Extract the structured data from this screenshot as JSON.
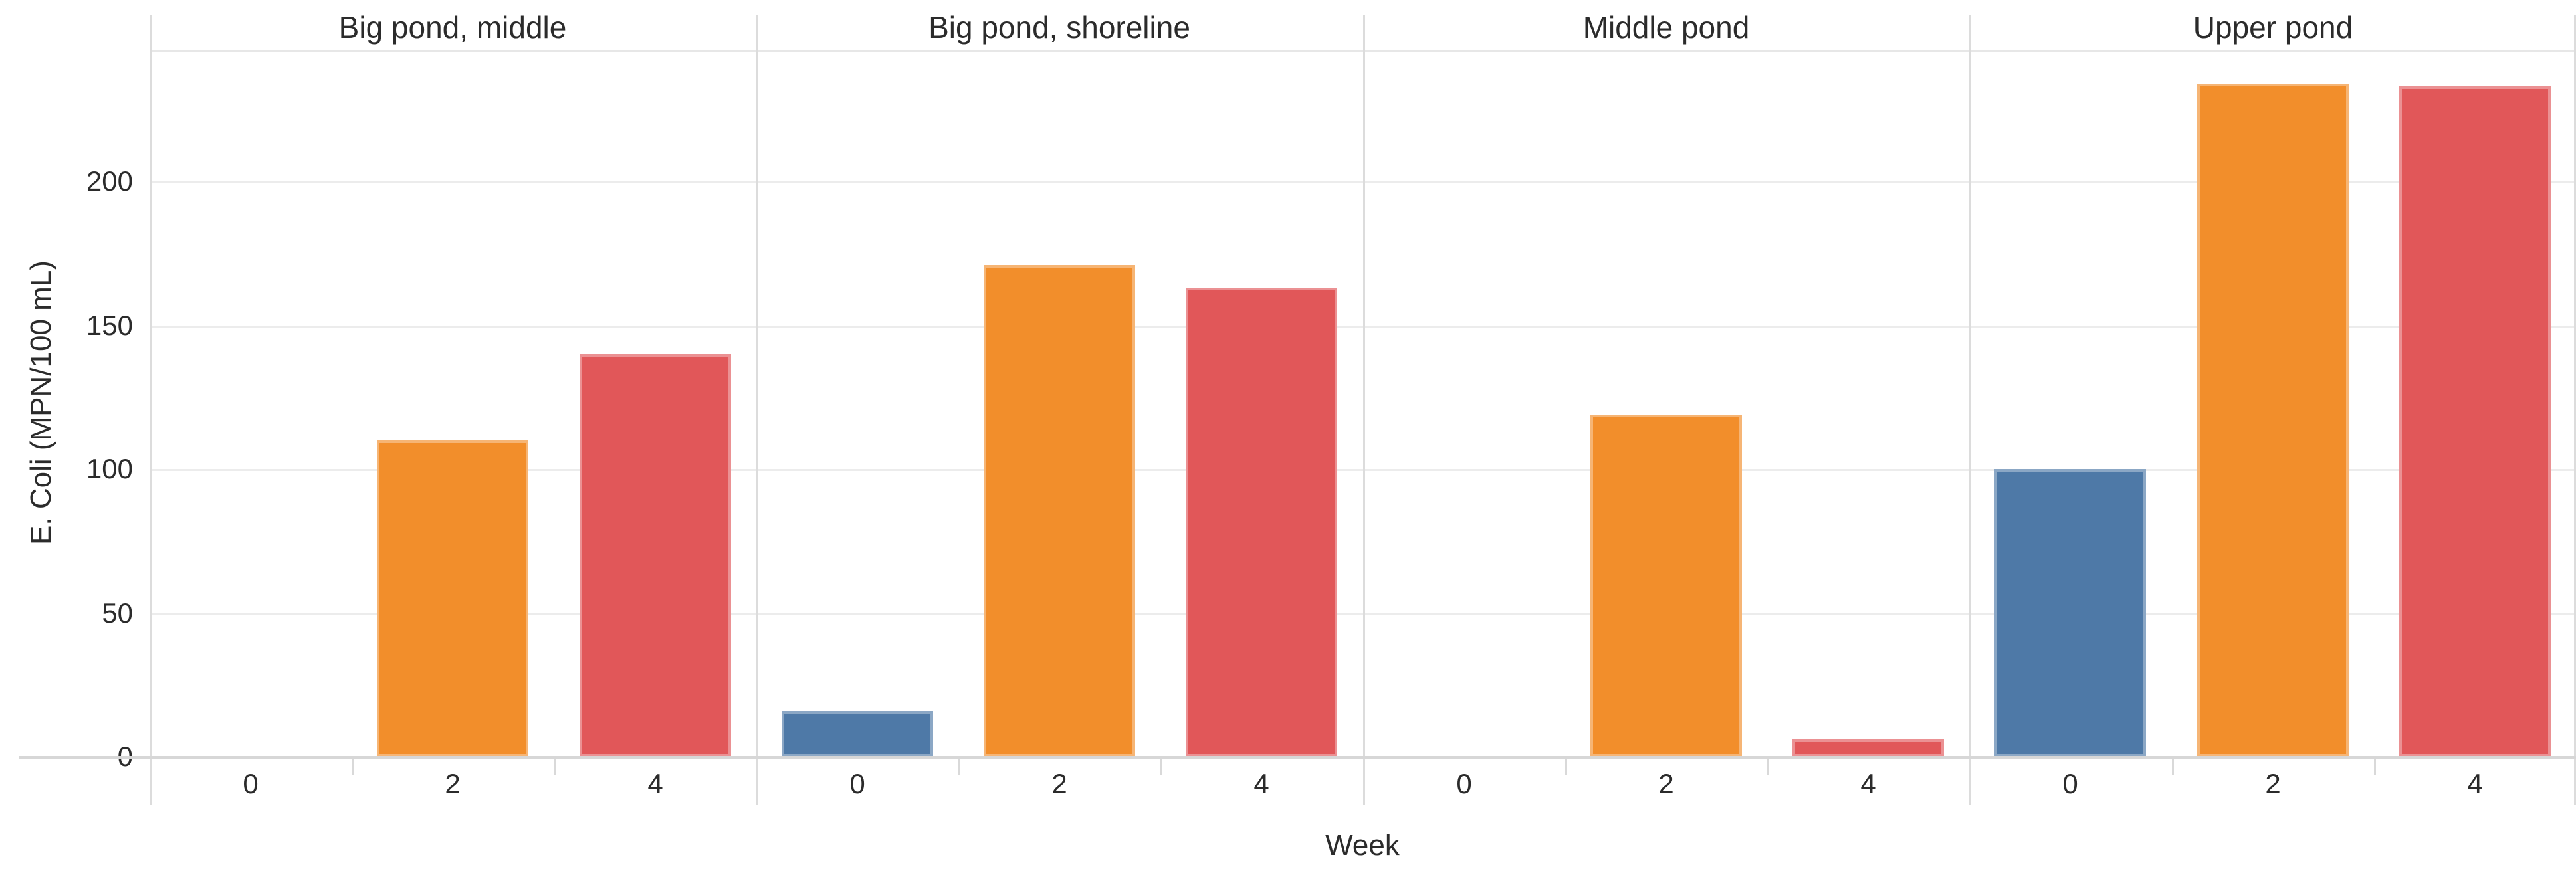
{
  "chart_data": {
    "type": "bar",
    "layout": "faceted-small-multiples",
    "facets": [
      {
        "title": "Big pond, middle",
        "values": [
          0,
          110,
          140
        ]
      },
      {
        "title": "Big pond, shoreline",
        "values": [
          16,
          171,
          163
        ]
      },
      {
        "title": "Middle pond",
        "values": [
          0,
          119,
          6
        ]
      },
      {
        "title": "Upper pond",
        "values": [
          100,
          234,
          233
        ]
      }
    ],
    "categories": [
      "0",
      "2",
      "4"
    ],
    "xlabel": "Week",
    "ylabel": "E. Coli (MPN/100 mL)",
    "yticks": [
      0,
      50,
      100,
      150,
      200
    ],
    "ylim": [
      0,
      245.5
    ],
    "grid": "horizontal-only",
    "legend": "none",
    "bar_colors": [
      "#4e79a7",
      "#f28e2b",
      "#e15759"
    ],
    "background_color": "#ffffff",
    "gridline_color": "#ececec",
    "axis_line_color": "#d7d7d7",
    "text_color": "#2b2b2b"
  }
}
